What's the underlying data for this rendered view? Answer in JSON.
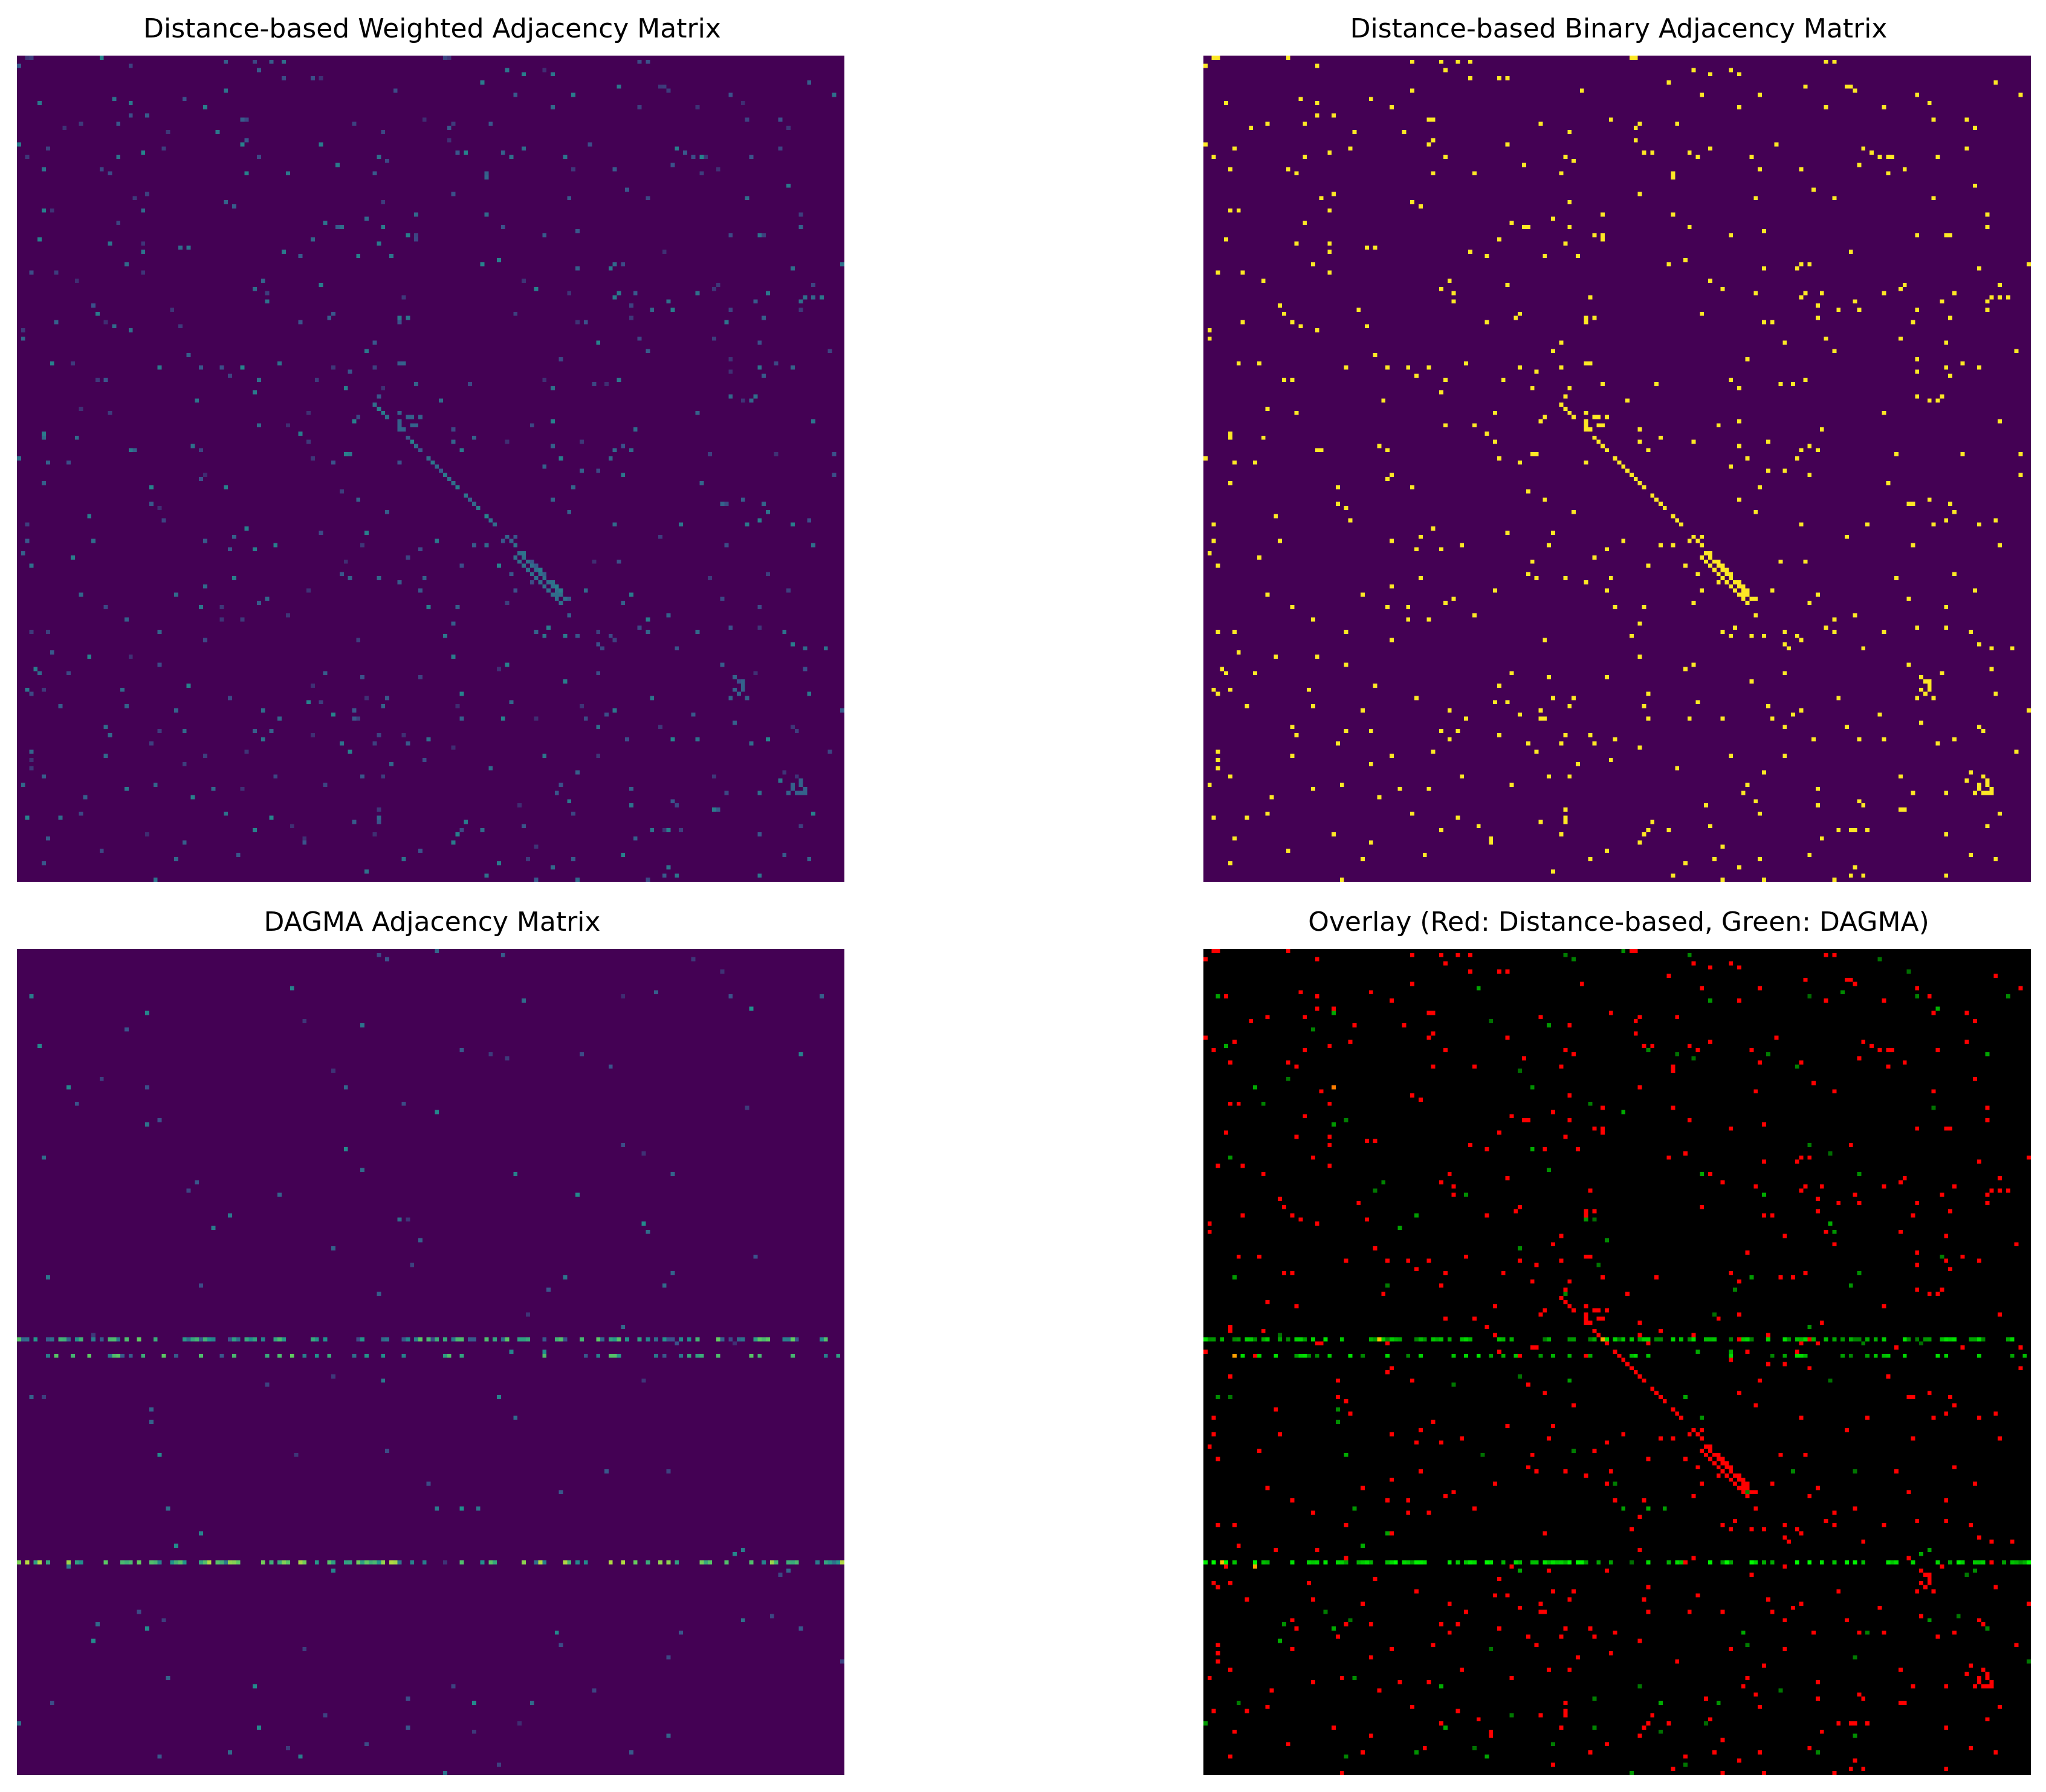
{
  "figure": {
    "panels": [
      {
        "title": "Distance-based Weighted Adjacency Matrix"
      },
      {
        "title": "Distance-based Binary Adjacency Matrix"
      },
      {
        "title": "DAGMA Adjacency Matrix"
      },
      {
        "title": "Overlay (Red: Distance-based, Green: DAGMA)"
      }
    ]
  },
  "chart_data": [
    {
      "type": "heatmap",
      "title": "Distance-based Weighted Adjacency Matrix",
      "colormap": "viridis",
      "background_color": "#440154",
      "matrix_size": 200,
      "description_of_structure": "sparse weighted entries; diagonal band from about row 85 to 130",
      "axes_visible": false
    },
    {
      "type": "heatmap",
      "title": "Distance-based Binary Adjacency Matrix",
      "colormap": "viridis",
      "background_color": "#440154",
      "highlight_color": "#fde725",
      "matrix_size": 200,
      "axes_visible": false
    },
    {
      "type": "heatmap",
      "title": "DAGMA Adjacency Matrix",
      "colormap": "viridis",
      "background_color": "#440154",
      "matrix_size": 200,
      "dense_rows": [
        94,
        98,
        148
      ],
      "axes_visible": false
    },
    {
      "type": "heatmap",
      "title": "Overlay (Red: Distance-based, Green: DAGMA)",
      "background_color": "#000000",
      "red_color": "#ff0000",
      "green_color": "#00cc00",
      "matrix_size": 200,
      "axes_visible": false
    }
  ]
}
